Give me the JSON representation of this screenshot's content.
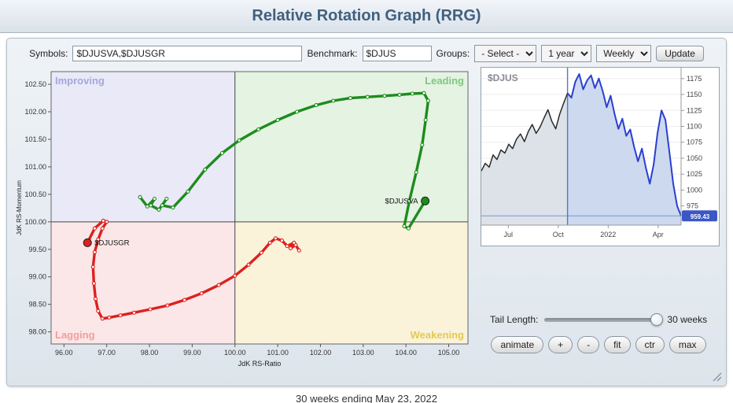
{
  "header": {
    "title": "Relative Rotation Graph (RRG)"
  },
  "toolbar": {
    "symbols_label": "Symbols:",
    "symbols_value": "$DJUSVA,$DJUSGR",
    "benchmark_label": "Benchmark:",
    "benchmark_value": "$DJUS",
    "groups_label": "Groups:",
    "groups_value": "- Select -",
    "period_value": "1 year",
    "frequency_value": "Weekly",
    "update_label": "Update"
  },
  "tail": {
    "label": "Tail Length:",
    "value": "30 weeks"
  },
  "buttons": [
    "animate",
    "+",
    "-",
    "fit",
    "ctr",
    "max"
  ],
  "footer": {
    "text": "30 weeks ending May 23, 2022"
  },
  "chart_data": [
    {
      "type": "scatter",
      "title": "Relative Rotation Graph",
      "xlabel": "JdK RS-Ratio",
      "ylabel": "JdK RS-Momentum",
      "xlim": [
        95.7,
        105.45
      ],
      "ylim": [
        97.78,
        102.73
      ],
      "xticks": [
        96,
        97,
        98,
        99,
        100,
        101,
        102,
        103,
        104,
        105
      ],
      "yticks": [
        98,
        98.5,
        99,
        99.5,
        100,
        100.5,
        101,
        101.5,
        102,
        102.5
      ],
      "center": [
        100,
        100
      ],
      "quadrants": {
        "improving": {
          "label": "Improving",
          "color": "#e9e9f7",
          "label_color": "#9b9bd6"
        },
        "leading": {
          "label": "Leading",
          "color": "#e4f3e2",
          "label_color": "#6fbf6f"
        },
        "lagging": {
          "label": "Lagging",
          "color": "#fbe7e7",
          "label_color": "#f49090"
        },
        "weakening": {
          "label": "Weakening",
          "color": "#faf3da",
          "label_color": "#e0c23c"
        }
      },
      "series": [
        {
          "name": "$DJUSVA",
          "color": "#1d8c1d",
          "label_side": "left",
          "points": [
            [
              97.78,
              100.45
            ],
            [
              97.95,
              100.28
            ],
            [
              98.12,
              100.42
            ],
            [
              98.03,
              100.3
            ],
            [
              98.22,
              100.22
            ],
            [
              98.4,
              100.42
            ],
            [
              98.3,
              100.3
            ],
            [
              98.55,
              100.26
            ],
            [
              98.9,
              100.55
            ],
            [
              99.3,
              100.95
            ],
            [
              99.7,
              101.25
            ],
            [
              100.1,
              101.48
            ],
            [
              100.55,
              101.68
            ],
            [
              101.0,
              101.85
            ],
            [
              101.45,
              102.0
            ],
            [
              101.9,
              102.12
            ],
            [
              102.3,
              102.2
            ],
            [
              102.7,
              102.25
            ],
            [
              103.1,
              102.27
            ],
            [
              103.5,
              102.29
            ],
            [
              103.85,
              102.31
            ],
            [
              104.15,
              102.33
            ],
            [
              104.42,
              102.34
            ],
            [
              104.52,
              102.2
            ],
            [
              104.46,
              101.85
            ],
            [
              104.38,
              101.4
            ],
            [
              104.24,
              100.9
            ],
            [
              104.08,
              100.38
            ],
            [
              103.96,
              99.92
            ],
            [
              104.06,
              99.88
            ],
            [
              104.45,
              100.38
            ]
          ]
        },
        {
          "name": "$DJUSGR",
          "color": "#dd2020",
          "label_side": "right",
          "points": [
            [
              101.5,
              99.48
            ],
            [
              101.42,
              99.58
            ],
            [
              101.3,
              99.52
            ],
            [
              101.38,
              99.62
            ],
            [
              101.22,
              99.56
            ],
            [
              101.1,
              99.66
            ],
            [
              100.95,
              99.7
            ],
            [
              100.82,
              99.62
            ],
            [
              100.62,
              99.44
            ],
            [
              100.32,
              99.22
            ],
            [
              100.0,
              99.02
            ],
            [
              99.62,
              98.85
            ],
            [
              99.22,
              98.7
            ],
            [
              98.82,
              98.58
            ],
            [
              98.42,
              98.48
            ],
            [
              98.02,
              98.41
            ],
            [
              97.64,
              98.35
            ],
            [
              97.32,
              98.3
            ],
            [
              97.06,
              98.26
            ],
            [
              96.9,
              98.24
            ],
            [
              96.8,
              98.38
            ],
            [
              96.74,
              98.6
            ],
            [
              96.7,
              98.88
            ],
            [
              96.68,
              99.18
            ],
            [
              96.72,
              99.45
            ],
            [
              96.8,
              99.68
            ],
            [
              96.9,
              99.88
            ],
            [
              97.0,
              100.0
            ],
            [
              96.92,
              100.02
            ],
            [
              96.72,
              99.88
            ],
            [
              96.55,
              99.62
            ]
          ]
        }
      ]
    },
    {
      "type": "area",
      "symbol": "$DJUS",
      "last_value": 959.43,
      "ylim": [
        945,
        1192
      ],
      "yticks": [
        975,
        1000,
        1025,
        1050,
        1075,
        1100,
        1125,
        1150,
        1175
      ],
      "xtick_labels": [
        "Jul",
        "Oct",
        "2022",
        "Apr"
      ],
      "xtick_positions": [
        0.135,
        0.385,
        0.635,
        0.885
      ],
      "tail_start_index": 22,
      "values": [
        1030,
        1042,
        1036,
        1055,
        1048,
        1063,
        1058,
        1072,
        1065,
        1080,
        1088,
        1076,
        1092,
        1103,
        1089,
        1099,
        1113,
        1126,
        1108,
        1096,
        1119,
        1136,
        1152,
        1145,
        1170,
        1182,
        1158,
        1172,
        1180,
        1160,
        1175,
        1155,
        1130,
        1148,
        1120,
        1096,
        1112,
        1085,
        1095,
        1068,
        1045,
        1065,
        1035,
        1010,
        1040,
        1090,
        1125,
        1110,
        1060,
        1010,
        975,
        959.43
      ],
      "line_color_pre": "#2b2b2b",
      "line_color_tail": "#2a3fd0",
      "fill_color_pre": "#dde2e9",
      "fill_color_tail": "#ccd9ee",
      "divider_color": "#5577cc",
      "last_value_color": "#3a57c4"
    }
  ]
}
